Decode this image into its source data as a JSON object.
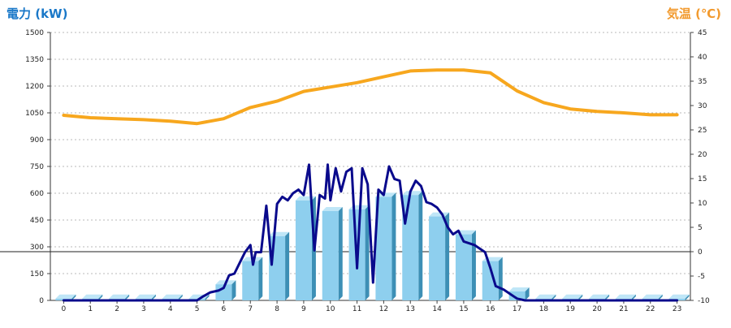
{
  "chart_data": {
    "type": "bar",
    "left_axis": {
      "label": "電力 (kW)",
      "ylim": [
        0,
        1500
      ],
      "ticks": [
        0,
        150,
        300,
        450,
        600,
        750,
        900,
        1050,
        1200,
        1350,
        1500
      ]
    },
    "right_axis": {
      "label": "気温 (℃)",
      "ylim": [
        -10,
        45
      ],
      "ticks": [
        -10,
        -5,
        0,
        5,
        10,
        15,
        20,
        25,
        30,
        35,
        40,
        45
      ]
    },
    "categories": [
      "0",
      "1",
      "2",
      "3",
      "4",
      "5",
      "6",
      "7",
      "8",
      "9",
      "10",
      "11",
      "12",
      "13",
      "14",
      "15",
      "16",
      "17",
      "18",
      "19",
      "20",
      "21",
      "22",
      "23"
    ],
    "grid": true,
    "series": [
      {
        "type": "bar",
        "axis": "left",
        "color": "#8ecfee",
        "values": [
          10,
          10,
          10,
          10,
          10,
          10,
          90,
          220,
          360,
          560,
          500,
          510,
          580,
          590,
          470,
          370,
          220,
          50,
          10,
          10,
          10,
          10,
          10,
          10
        ]
      },
      {
        "type": "line",
        "axis": "left",
        "color": "#0a0a8c",
        "x": [
          0,
          1,
          2,
          3,
          4,
          5,
          5.2,
          5.5,
          5.8,
          6.0,
          6.2,
          6.4,
          6.6,
          6.8,
          7.0,
          7.1,
          7.2,
          7.4,
          7.6,
          7.8,
          8.0,
          8.2,
          8.4,
          8.6,
          8.8,
          9.0,
          9.2,
          9.4,
          9.6,
          9.8,
          9.9,
          10.0,
          10.2,
          10.4,
          10.6,
          10.8,
          11.0,
          11.2,
          11.4,
          11.6,
          11.8,
          12.0,
          12.2,
          12.4,
          12.6,
          12.8,
          13.0,
          13.2,
          13.4,
          13.6,
          13.8,
          14.0,
          14.2,
          14.4,
          14.6,
          14.8,
          15.0,
          15.4,
          15.8,
          16.0,
          16.2,
          16.5,
          16.8,
          17.0,
          17.3,
          18,
          19,
          20,
          21,
          22,
          23
        ],
        "values": [
          0,
          0,
          0,
          0,
          0,
          0,
          20,
          45,
          55,
          70,
          140,
          150,
          210,
          270,
          310,
          200,
          270,
          270,
          530,
          200,
          540,
          580,
          560,
          600,
          620,
          590,
          760,
          280,
          590,
          570,
          760,
          560,
          740,
          610,
          720,
          740,
          180,
          740,
          650,
          100,
          620,
          590,
          750,
          680,
          670,
          430,
          610,
          670,
          640,
          550,
          540,
          520,
          480,
          410,
          370,
          390,
          330,
          310,
          270,
          180,
          80,
          60,
          30,
          10,
          0,
          0,
          0,
          0,
          0,
          0,
          0
        ]
      },
      {
        "type": "line",
        "axis": "right",
        "color": "#f7a71e",
        "x": [
          0,
          1,
          2,
          3,
          4,
          5,
          6,
          7,
          8,
          9,
          10,
          11,
          12,
          13,
          14,
          15,
          16,
          17,
          18,
          19,
          20,
          21,
          22,
          23
        ],
        "values": [
          28,
          27.5,
          27.3,
          27.1,
          26.8,
          26.3,
          27.3,
          29.6,
          30.9,
          32.9,
          33.8,
          34.7,
          35.9,
          37.1,
          37.3,
          37.3,
          36.7,
          33.0,
          30.6,
          29.3,
          28.8,
          28.5,
          28.1,
          28.1
        ]
      }
    ]
  }
}
